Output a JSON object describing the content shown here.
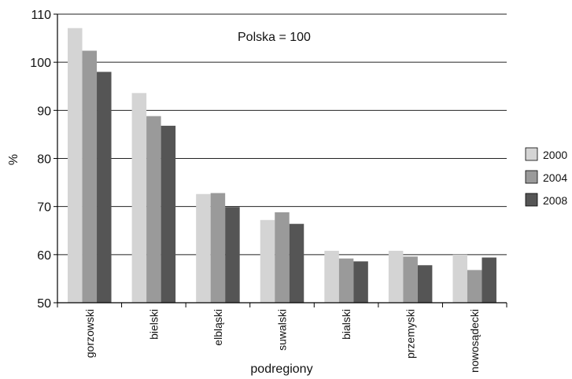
{
  "chart_data": {
    "type": "bar",
    "annotation": "Polska = 100",
    "xlabel": "podregiony",
    "ylabel": "%",
    "ylim": [
      50,
      110
    ],
    "yticks": [
      50,
      60,
      70,
      80,
      90,
      100,
      110
    ],
    "grid": true,
    "legend_position": "right",
    "categories": [
      "gorzowski",
      "bielski",
      "elbląski",
      "suwalski",
      "bialski",
      "przemyski",
      "nowosądecki"
    ],
    "series": [
      {
        "name": "2000",
        "color": "#d4d4d4",
        "values": [
          107.1,
          93.6,
          72.6,
          67.2,
          60.8,
          60.8,
          60.0
        ]
      },
      {
        "name": "2004",
        "color": "#9a9a9a",
        "values": [
          102.4,
          88.8,
          72.8,
          68.8,
          59.2,
          59.6,
          56.8
        ]
      },
      {
        "name": "2008",
        "color": "#555555",
        "values": [
          98.0,
          86.8,
          69.9,
          66.4,
          58.6,
          57.8,
          59.4
        ]
      }
    ]
  }
}
